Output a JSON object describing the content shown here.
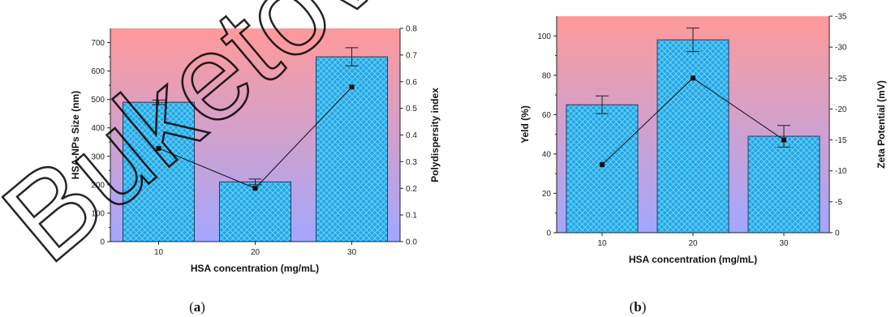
{
  "watermark": "Buketov",
  "chart_data": [
    {
      "type": "bar",
      "panel_label": "(a)",
      "panel_letter": "a",
      "xlabel": "HSA concentration (mg/mL)",
      "ylabel": "HSA-NPs Size (nm)",
      "y2label": "Polydispersity index",
      "categories": [
        "10",
        "20",
        "30"
      ],
      "ylim": [
        0,
        750
      ],
      "yticks": [
        0,
        100,
        200,
        300,
        400,
        500,
        600,
        700
      ],
      "y2lim": [
        0,
        0.8
      ],
      "y2ticks": [
        "0.0",
        "0.1",
        "0.2",
        "0.3",
        "0.4",
        "0.5",
        "0.6",
        "0.7",
        "0.8"
      ],
      "bars": {
        "values": [
          490,
          210,
          650
        ],
        "errors": [
          8,
          10,
          32
        ]
      },
      "line": {
        "axis": "right",
        "values": [
          0.35,
          0.2,
          0.58
        ]
      },
      "colors": {
        "bar": "#1fa8e6",
        "bg_top": "#ff9a9a",
        "bg_bottom": "#a3a7ff"
      }
    },
    {
      "type": "bar",
      "panel_label": "(b)",
      "panel_letter": "b",
      "xlabel": "HSA concentration (mg/mL)",
      "ylabel": "Yeld (%)",
      "y2label": "Zeta Potential (mV)",
      "categories": [
        "10",
        "20",
        "30"
      ],
      "ylim": [
        0,
        110
      ],
      "yticks": [
        0,
        20,
        40,
        60,
        80,
        100
      ],
      "y2lim": [
        0,
        -35
      ],
      "y2ticks": [
        "0",
        "-5",
        "-10",
        "-15",
        "-20",
        "-25",
        "-30",
        "-35"
      ],
      "bars": {
        "values": [
          65,
          98,
          49
        ],
        "errors": [
          4.5,
          6,
          5.5
        ]
      },
      "line": {
        "axis": "right",
        "values": [
          -11,
          -25,
          -15
        ]
      },
      "colors": {
        "bar": "#1fa8e6",
        "bg_top": "#ff9a9a",
        "bg_bottom": "#a3a7ff"
      }
    }
  ]
}
